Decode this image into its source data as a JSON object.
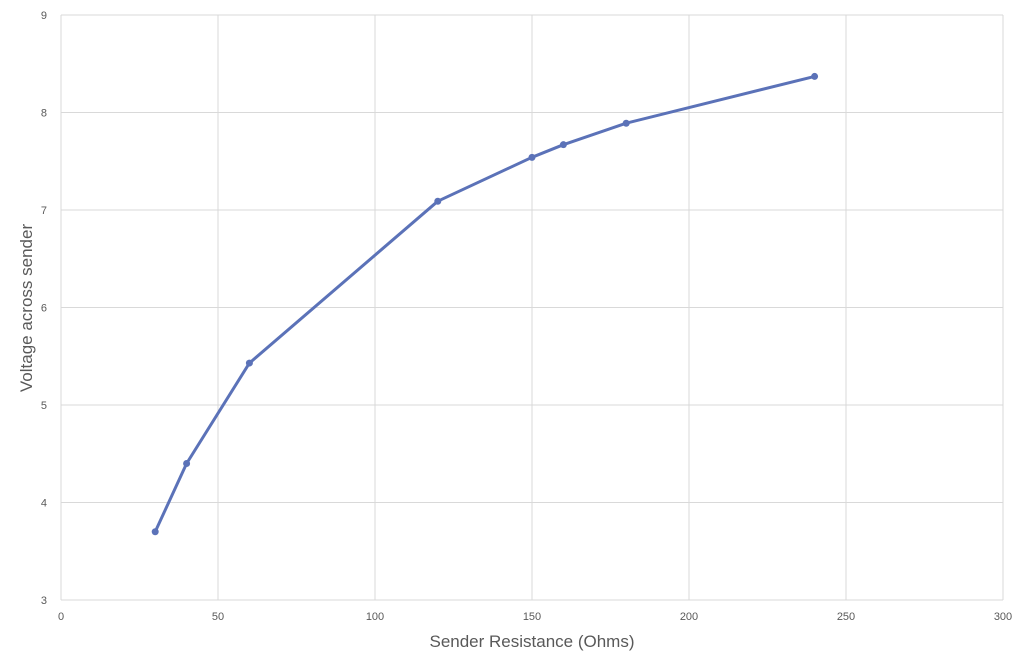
{
  "chart_data": {
    "type": "line",
    "title": "",
    "xlabel": "Sender Resistance (Ohms)",
    "ylabel": "Voltage across sender",
    "xlim": [
      0,
      300
    ],
    "ylim": [
      3,
      9
    ],
    "x_ticks": [
      0,
      50,
      100,
      150,
      200,
      250,
      300
    ],
    "y_ticks": [
      3,
      4,
      5,
      6,
      7,
      8,
      9
    ],
    "grid": true,
    "legend": "none",
    "series": [
      {
        "color": "#5b72b8",
        "markers": true,
        "x": [
          30,
          40,
          60,
          120,
          150,
          160,
          180,
          240
        ],
        "y": [
          3.7,
          4.4,
          5.43,
          7.09,
          7.54,
          7.67,
          7.89,
          8.37
        ]
      }
    ]
  },
  "colors": {
    "grid": "#d9d9d9",
    "text": "#595959",
    "background": "#ffffff"
  }
}
